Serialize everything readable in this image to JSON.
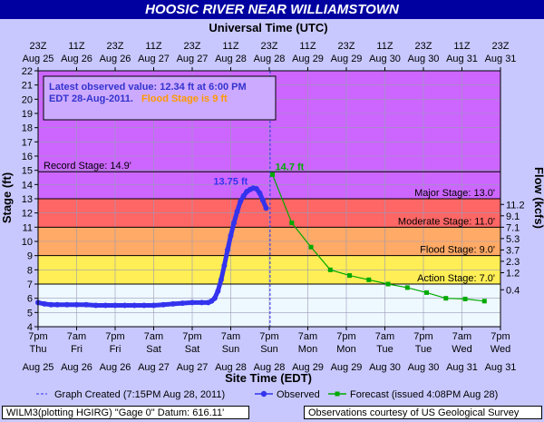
{
  "title": "HOOSIC RIVER NEAR WILLIAMSTOWN",
  "top_axis_title": "Universal Time (UTC)",
  "xlabel": "Site Time (EDT)",
  "ylabel": "Stage (ft)",
  "y2label": "Flow (kcfs)",
  "colors": {
    "observed": "#3333ee",
    "forecast": "#00aa00",
    "record": "#cc66ff",
    "major": "#ff6666",
    "moderate": "#ffaa66",
    "flood": "#ffee55",
    "action": "#ffff99",
    "normal": "#eef8ff"
  },
  "info_box": {
    "line1": "Latest observed value: 12.34 ft at 6:00 PM",
    "line2": "EDT 28-Aug-2011.",
    "line3": "Flood Stage is 9 ft"
  },
  "thresholds": [
    {
      "label": "Record Stage: 14.9'",
      "value": 14.9
    },
    {
      "label": "Major Stage: 13.0'",
      "value": 13.0
    },
    {
      "label": "Moderate Stage: 11.0'",
      "value": 11.0
    },
    {
      "label": "Flood Stage: 9.0'",
      "value": 9.0
    },
    {
      "label": "Action Stage: 7.0'",
      "value": 7.0
    }
  ],
  "peak_labels": {
    "observed": "13.75 ft",
    "forecast": "14.7 ft"
  },
  "legend": {
    "created": "Graph Created (7:15PM Aug 28, 2011)",
    "observed": "Observed",
    "forecast": "Forecast (issued 4:08PM Aug 28)"
  },
  "footer": {
    "left": "WILM3(plotting HGIRG) \"Gage 0\" Datum: 616.11'",
    "right": "Observations courtesy of US Geological Survey"
  },
  "chart_data": {
    "type": "line",
    "ylim": [
      4,
      22
    ],
    "y_ticks": [
      4,
      5,
      6,
      7,
      8,
      9,
      10,
      11,
      12,
      13,
      14,
      15,
      16,
      17,
      18,
      19,
      20,
      21,
      22
    ],
    "flow_ticks": [
      {
        "label": "11.2",
        "stage": 12.6
      },
      {
        "label": "9.1",
        "stage": 11.8
      },
      {
        "label": "7.1",
        "stage": 11.0
      },
      {
        "label": "5.3",
        "stage": 10.2
      },
      {
        "label": "3.7",
        "stage": 9.4
      },
      {
        "label": "2.3",
        "stage": 8.6
      },
      {
        "label": "1.2",
        "stage": 7.8
      },
      {
        "label": "0.4",
        "stage": 6.6
      }
    ],
    "x_ticks_top": [
      {
        "l1": "23Z",
        "l2": "Aug 25"
      },
      {
        "l1": "11Z",
        "l2": "Aug 26"
      },
      {
        "l1": "23Z",
        "l2": "Aug 26"
      },
      {
        "l1": "11Z",
        "l2": "Aug 27"
      },
      {
        "l1": "23Z",
        "l2": "Aug 27"
      },
      {
        "l1": "11Z",
        "l2": "Aug 28"
      },
      {
        "l1": "23Z",
        "l2": "Aug 28"
      },
      {
        "l1": "11Z",
        "l2": "Aug 29"
      },
      {
        "l1": "23Z",
        "l2": "Aug 29"
      },
      {
        "l1": "11Z",
        "l2": "Aug 30"
      },
      {
        "l1": "23Z",
        "l2": "Aug 30"
      },
      {
        "l1": "11Z",
        "l2": "Aug 31"
      },
      {
        "l1": "23Z",
        "l2": "Aug 31"
      }
    ],
    "x_ticks_bottom": [
      {
        "l1": "7pm",
        "l2": "Thu",
        "l3": "Aug 25"
      },
      {
        "l1": "7am",
        "l2": "Fri",
        "l3": "Aug 26"
      },
      {
        "l1": "7pm",
        "l2": "Fri",
        "l3": "Aug 26"
      },
      {
        "l1": "7am",
        "l2": "Sat",
        "l3": "Aug 27"
      },
      {
        "l1": "7pm",
        "l2": "Sat",
        "l3": "Aug 27"
      },
      {
        "l1": "7am",
        "l2": "Sun",
        "l3": "Aug 28"
      },
      {
        "l1": "7pm",
        "l2": "Sun",
        "l3": "Aug 28"
      },
      {
        "l1": "7am",
        "l2": "Mon",
        "l3": "Aug 29"
      },
      {
        "l1": "7pm",
        "l2": "Mon",
        "l3": "Aug 29"
      },
      {
        "l1": "7am",
        "l2": "Tue",
        "l3": "Aug 30"
      },
      {
        "l1": "7pm",
        "l2": "Tue",
        "l3": "Aug 30"
      },
      {
        "l1": "7am",
        "l2": "Wed",
        "l3": "Aug 31"
      },
      {
        "l1": "7pm",
        "l2": "Wed",
        "l3": "Aug 31"
      }
    ],
    "graph_created_x": "2011-08-28 19:15",
    "observed": [
      [
        "2011-08-25 19:00",
        5.7
      ],
      [
        "2011-08-25 21:00",
        5.6
      ],
      [
        "2011-08-25 23:00",
        5.55
      ],
      [
        "2011-08-26 01:00",
        5.55
      ],
      [
        "2011-08-26 04:00",
        5.55
      ],
      [
        "2011-08-26 07:00",
        5.55
      ],
      [
        "2011-08-26 10:00",
        5.55
      ],
      [
        "2011-08-26 13:00",
        5.5
      ],
      [
        "2011-08-26 16:00",
        5.5
      ],
      [
        "2011-08-26 19:00",
        5.5
      ],
      [
        "2011-08-26 22:00",
        5.5
      ],
      [
        "2011-08-27 01:00",
        5.5
      ],
      [
        "2011-08-27 04:00",
        5.5
      ],
      [
        "2011-08-27 07:00",
        5.5
      ],
      [
        "2011-08-27 10:00",
        5.55
      ],
      [
        "2011-08-27 13:00",
        5.6
      ],
      [
        "2011-08-27 16:00",
        5.65
      ],
      [
        "2011-08-27 19:00",
        5.7
      ],
      [
        "2011-08-27 22:00",
        5.7
      ],
      [
        "2011-08-28 00:00",
        5.7
      ],
      [
        "2011-08-28 01:00",
        5.8
      ],
      [
        "2011-08-28 02:00",
        6.0
      ],
      [
        "2011-08-28 03:00",
        6.5
      ],
      [
        "2011-08-28 04:00",
        7.3
      ],
      [
        "2011-08-28 05:00",
        8.3
      ],
      [
        "2011-08-28 06:00",
        9.4
      ],
      [
        "2011-08-28 07:00",
        10.4
      ],
      [
        "2011-08-28 08:00",
        11.3
      ],
      [
        "2011-08-28 09:00",
        12.1
      ],
      [
        "2011-08-28 10:00",
        12.8
      ],
      [
        "2011-08-28 11:00",
        13.2
      ],
      [
        "2011-08-28 12:00",
        13.5
      ],
      [
        "2011-08-28 13:00",
        13.65
      ],
      [
        "2011-08-28 14:00",
        13.75
      ],
      [
        "2011-08-28 15:00",
        13.7
      ],
      [
        "2011-08-28 16:00",
        13.4
      ],
      [
        "2011-08-28 17:00",
        12.9
      ],
      [
        "2011-08-28 18:00",
        12.34
      ]
    ],
    "forecast": [
      [
        "2011-08-28 20:00",
        14.7
      ],
      [
        "2011-08-29 02:00",
        11.3
      ],
      [
        "2011-08-29 08:00",
        9.6
      ],
      [
        "2011-08-29 14:00",
        8.0
      ],
      [
        "2011-08-29 20:00",
        7.6
      ],
      [
        "2011-08-30 02:00",
        7.3
      ],
      [
        "2011-08-30 08:00",
        7.0
      ],
      [
        "2011-08-30 14:00",
        6.75
      ],
      [
        "2011-08-30 20:00",
        6.4
      ],
      [
        "2011-08-31 02:00",
        6.0
      ],
      [
        "2011-08-31 08:00",
        5.95
      ],
      [
        "2011-08-31 14:00",
        5.8
      ]
    ]
  }
}
